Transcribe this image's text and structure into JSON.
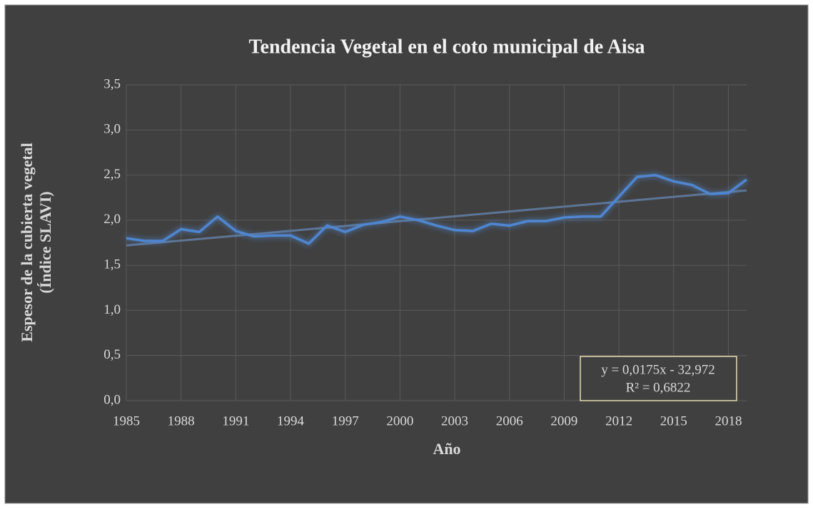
{
  "chart_data": {
    "type": "line",
    "title": "Tendencia Vegetal en el coto municipal de Aisa",
    "x_label": "Año",
    "y_label": [
      "Espesor de la cubierta vegetal",
      "(Índice SLAVI)"
    ],
    "x": [
      1985,
      1986,
      1987,
      1988,
      1989,
      1990,
      1991,
      1992,
      1993,
      1994,
      1995,
      1996,
      1997,
      1998,
      1999,
      2000,
      2001,
      2002,
      2003,
      2004,
      2005,
      2006,
      2007,
      2008,
      2009,
      2010,
      2011,
      2012,
      2013,
      2014,
      2015,
      2016,
      2017,
      2018,
      2019
    ],
    "series": [
      {
        "color": "#4f86d0",
        "values": [
          1.8,
          1.77,
          1.77,
          1.9,
          1.87,
          2.04,
          1.88,
          1.82,
          1.83,
          1.83,
          1.74,
          1.94,
          1.87,
          1.95,
          1.98,
          2.04,
          2.0,
          1.94,
          1.89,
          1.88,
          1.96,
          1.94,
          1.99,
          1.99,
          2.03,
          2.04,
          2.04,
          2.26,
          2.48,
          2.5,
          2.43,
          2.39,
          2.29,
          2.3,
          2.45
        ]
      }
    ],
    "trendline": {
      "color": "#5d7595",
      "x": [
        1985,
        2019
      ],
      "values": [
        1.72,
        2.33
      ]
    },
    "annotation": [
      "y = 0,0175x - 32,972",
      "R² = 0,6822"
    ],
    "xlim": [
      1985,
      2019
    ],
    "xticks": [
      1985,
      1988,
      1991,
      1994,
      1997,
      2000,
      2003,
      2006,
      2009,
      2012,
      2015,
      2018
    ],
    "ylim": [
      0,
      3.5
    ],
    "yticks": [
      {
        "value": 0,
        "label": "0,0"
      },
      {
        "value": 0.5,
        "label": "0,5"
      },
      {
        "value": 1,
        "label": "1,0"
      },
      {
        "value": 1.5,
        "label": "1,5"
      },
      {
        "value": 2,
        "label": "2,0"
      },
      {
        "value": 2.5,
        "label": "2,5"
      },
      {
        "value": 3,
        "label": "3,0"
      },
      {
        "value": 3.5,
        "label": "3,5"
      }
    ],
    "grid": true
  }
}
